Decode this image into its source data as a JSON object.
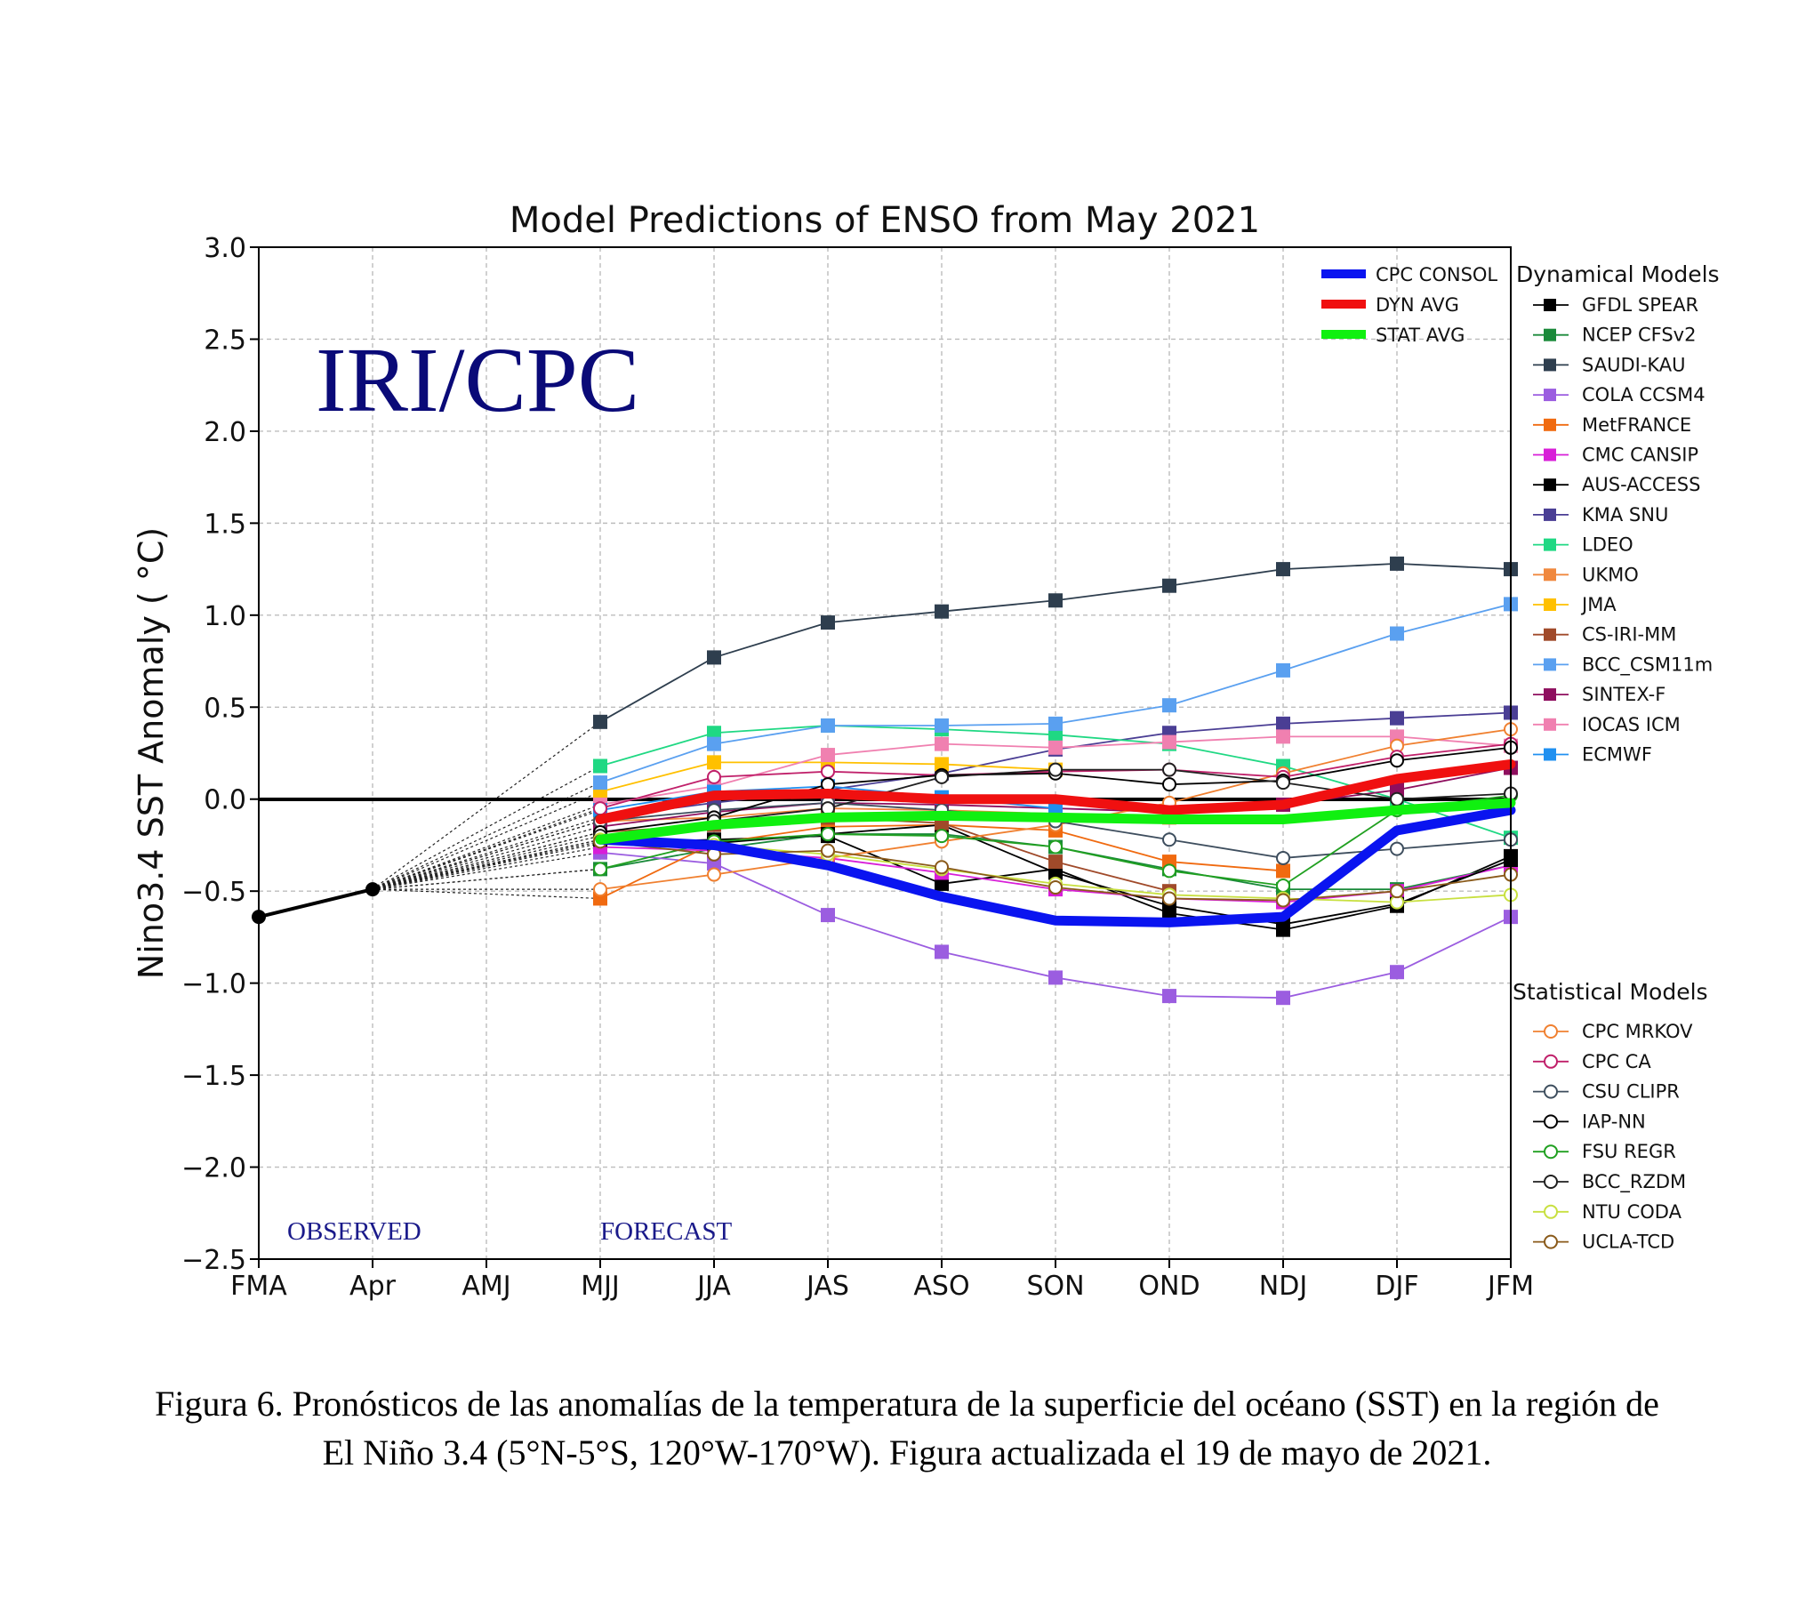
{
  "chart_data": {
    "type": "line",
    "title": "Model Predictions of ENSO from May 2021",
    "ylabel": "Nino3.4 SST Anomaly ( °C)",
    "xlabel": "",
    "categories": [
      "FMA",
      "Apr",
      "AMJ",
      "MJJ",
      "JJA",
      "JAS",
      "ASO",
      "SON",
      "OND",
      "NDJ",
      "DJF",
      "JFM"
    ],
    "ylim": [
      -2.5,
      3.0
    ],
    "yticks": [
      "3.0",
      "2.5",
      "2.0",
      "1.5",
      "1.0",
      "0.5",
      "0.0",
      "−0.5",
      "−1.0",
      "−1.5",
      "−2.0",
      "−2.5"
    ],
    "yticks_values": [
      3.0,
      2.5,
      2.0,
      1.5,
      1.0,
      0.5,
      0.0,
      -0.5,
      -1.0,
      -1.5,
      -2.0,
      -2.5
    ],
    "grid": true,
    "watermark": "IRI/CPC",
    "annotations": {
      "observed": "OBSERVED",
      "forecast": "FORECAST"
    },
    "observed": {
      "x": [
        0,
        1
      ],
      "values": [
        -0.64,
        -0.49
      ]
    },
    "summary_legend": [
      {
        "name": "CPC CONSOL",
        "color": "#0a14f0"
      },
      {
        "name": "DYN AVG",
        "color": "#f01010"
      },
      {
        "name": "STAT AVG",
        "color": "#10f010"
      }
    ],
    "summary_series": [
      {
        "name": "CPC CONSOL",
        "color": "#0a14f0",
        "values": [
          -0.22,
          -0.25,
          -0.36,
          -0.53,
          -0.66,
          -0.67,
          -0.64,
          -0.17,
          -0.06
        ]
      },
      {
        "name": "DYN AVG",
        "color": "#f01010",
        "values": [
          -0.11,
          0.02,
          0.03,
          0.0,
          0.0,
          -0.06,
          -0.03,
          0.11,
          0.19
        ]
      },
      {
        "name": "STAT AVG",
        "color": "#10f010",
        "values": [
          -0.22,
          -0.14,
          -0.1,
          -0.09,
          -0.1,
          -0.11,
          -0.11,
          -0.06,
          -0.02
        ]
      }
    ],
    "dynamical_title": "Dynamical Models",
    "dynamical_models": [
      {
        "name": "GFDL SPEAR",
        "color": "#000000",
        "values": [
          -0.24,
          -0.22,
          -0.2,
          -0.46,
          -0.38,
          -0.62,
          -0.71,
          -0.58,
          -0.31
        ]
      },
      {
        "name": "NCEP CFSv2",
        "color": "#1a8a3a",
        "values": [
          -0.38,
          -0.27,
          -0.19,
          -0.19,
          -0.26,
          -0.38,
          -0.49,
          -0.49,
          -0.36
        ]
      },
      {
        "name": "SAUDI-KAU",
        "color": "#2e3e4e",
        "values": [
          0.42,
          0.77,
          0.96,
          1.02,
          1.08,
          1.16,
          1.25,
          1.28,
          1.25
        ]
      },
      {
        "name": "COLA CCSM4",
        "color": "#9b5de0",
        "values": [
          -0.29,
          -0.35,
          -0.63,
          -0.83,
          -0.97,
          -1.07,
          -1.08,
          -0.94,
          -0.64
        ]
      },
      {
        "name": "MetFRANCE",
        "color": "#f06a10",
        "values": [
          -0.54,
          -0.24,
          -0.15,
          -0.14,
          -0.17,
          -0.34,
          -0.39,
          null,
          null
        ]
      },
      {
        "name": "CMC CANSIP",
        "color": "#d81ed8",
        "values": [
          -0.26,
          -0.28,
          -0.32,
          -0.4,
          -0.49,
          -0.54,
          -0.56,
          -0.5,
          -0.36
        ]
      },
      {
        "name": "AUS-ACCESS",
        "color": "#000000",
        "values": [
          -0.22,
          -0.24,
          -0.19,
          -0.14,
          -0.4,
          -0.58,
          -0.68,
          -0.57,
          -0.33
        ]
      },
      {
        "name": "KMA SNU",
        "color": "#4a3e94",
        "values": [
          -0.1,
          -0.02,
          0.05,
          0.14,
          0.27,
          0.36,
          0.41,
          0.44,
          0.47
        ]
      },
      {
        "name": "LDEO",
        "color": "#1fd883",
        "values": [
          0.18,
          0.36,
          0.4,
          0.38,
          0.35,
          0.3,
          0.18,
          0.0,
          -0.21
        ]
      },
      {
        "name": "UKMO",
        "color": "#f0883e",
        "values": [
          -0.12,
          -0.1,
          -0.05,
          -0.06,
          -0.08,
          -0.1,
          null,
          null,
          null
        ]
      },
      {
        "name": "JMA",
        "color": "#ffc000",
        "values": [
          0.04,
          0.2,
          0.2,
          0.19,
          0.16,
          null,
          null,
          null,
          null
        ]
      },
      {
        "name": "CS-IRI-MM",
        "color": "#a04a2a",
        "values": [
          -0.18,
          -0.14,
          -0.1,
          -0.13,
          -0.34,
          -0.5,
          null,
          null,
          null
        ]
      },
      {
        "name": "BCC_CSM11m",
        "color": "#5aa0f0",
        "values": [
          0.09,
          0.3,
          0.4,
          0.4,
          0.41,
          0.51,
          0.7,
          0.9,
          1.06
        ]
      },
      {
        "name": "SINTEX-F",
        "color": "#8e0e5e",
        "values": [
          -0.15,
          -0.07,
          -0.02,
          -0.03,
          -0.05,
          -0.07,
          -0.03,
          0.05,
          0.17
        ]
      },
      {
        "name": "IOCAS ICM",
        "color": "#f080b0",
        "values": [
          -0.03,
          0.07,
          0.24,
          0.3,
          0.28,
          0.31,
          0.34,
          0.34,
          0.29
        ]
      },
      {
        "name": "ECMWF",
        "color": "#2090f0",
        "values": [
          -0.06,
          0.04,
          0.07,
          0.01,
          -0.05,
          null,
          null,
          null,
          null
        ]
      }
    ],
    "statistical_title": "Statistical Models",
    "statistical_models": [
      {
        "name": "CPC MRKOV",
        "color": "#f08030",
        "values": [
          -0.49,
          -0.41,
          -0.32,
          -0.23,
          -0.14,
          -0.02,
          0.14,
          0.29,
          0.38
        ]
      },
      {
        "name": "CPC CA",
        "color": "#c0206a",
        "values": [
          -0.05,
          0.12,
          0.15,
          0.13,
          0.15,
          0.16,
          0.12,
          0.23,
          0.3
        ]
      },
      {
        "name": "CSU CLIPR",
        "color": "#3e4e5e",
        "values": [
          -0.12,
          -0.06,
          -0.02,
          -0.06,
          -0.12,
          -0.22,
          -0.32,
          -0.27,
          -0.22
        ]
      },
      {
        "name": "IAP-NN",
        "color": "#000000",
        "values": [
          -0.18,
          -0.1,
          0.08,
          0.13,
          0.14,
          0.08,
          0.1,
          0.21,
          0.28
        ]
      },
      {
        "name": "FSU REGR",
        "color": "#20a020",
        "values": [
          -0.38,
          -0.23,
          -0.19,
          -0.2,
          -0.26,
          -0.39,
          -0.47,
          -0.06,
          0.02
        ]
      },
      {
        "name": "BCC_RZDM",
        "color": "#202020",
        "values": [
          -0.2,
          -0.12,
          -0.05,
          0.12,
          0.16,
          0.16,
          0.09,
          0.0,
          0.03
        ]
      },
      {
        "name": "NTU CODA",
        "color": "#c8e040",
        "values": [
          -0.22,
          -0.25,
          -0.3,
          -0.38,
          -0.46,
          -0.52,
          -0.54,
          -0.56,
          -0.52
        ]
      },
      {
        "name": "UCLA-TCD",
        "color": "#8a5a1a",
        "values": [
          -0.23,
          -0.3,
          -0.28,
          -0.37,
          -0.48,
          -0.54,
          -0.55,
          -0.5,
          -0.41
        ]
      }
    ]
  },
  "caption": {
    "line1": "Figura 6. Pronósticos de las anomalías de la temperatura de la superficie del océano (SST) en la región de",
    "line2": "El Niño 3.4 (5°N-5°S, 120°W-170°W). Figura actualizada el 19 de mayo de 2021."
  }
}
